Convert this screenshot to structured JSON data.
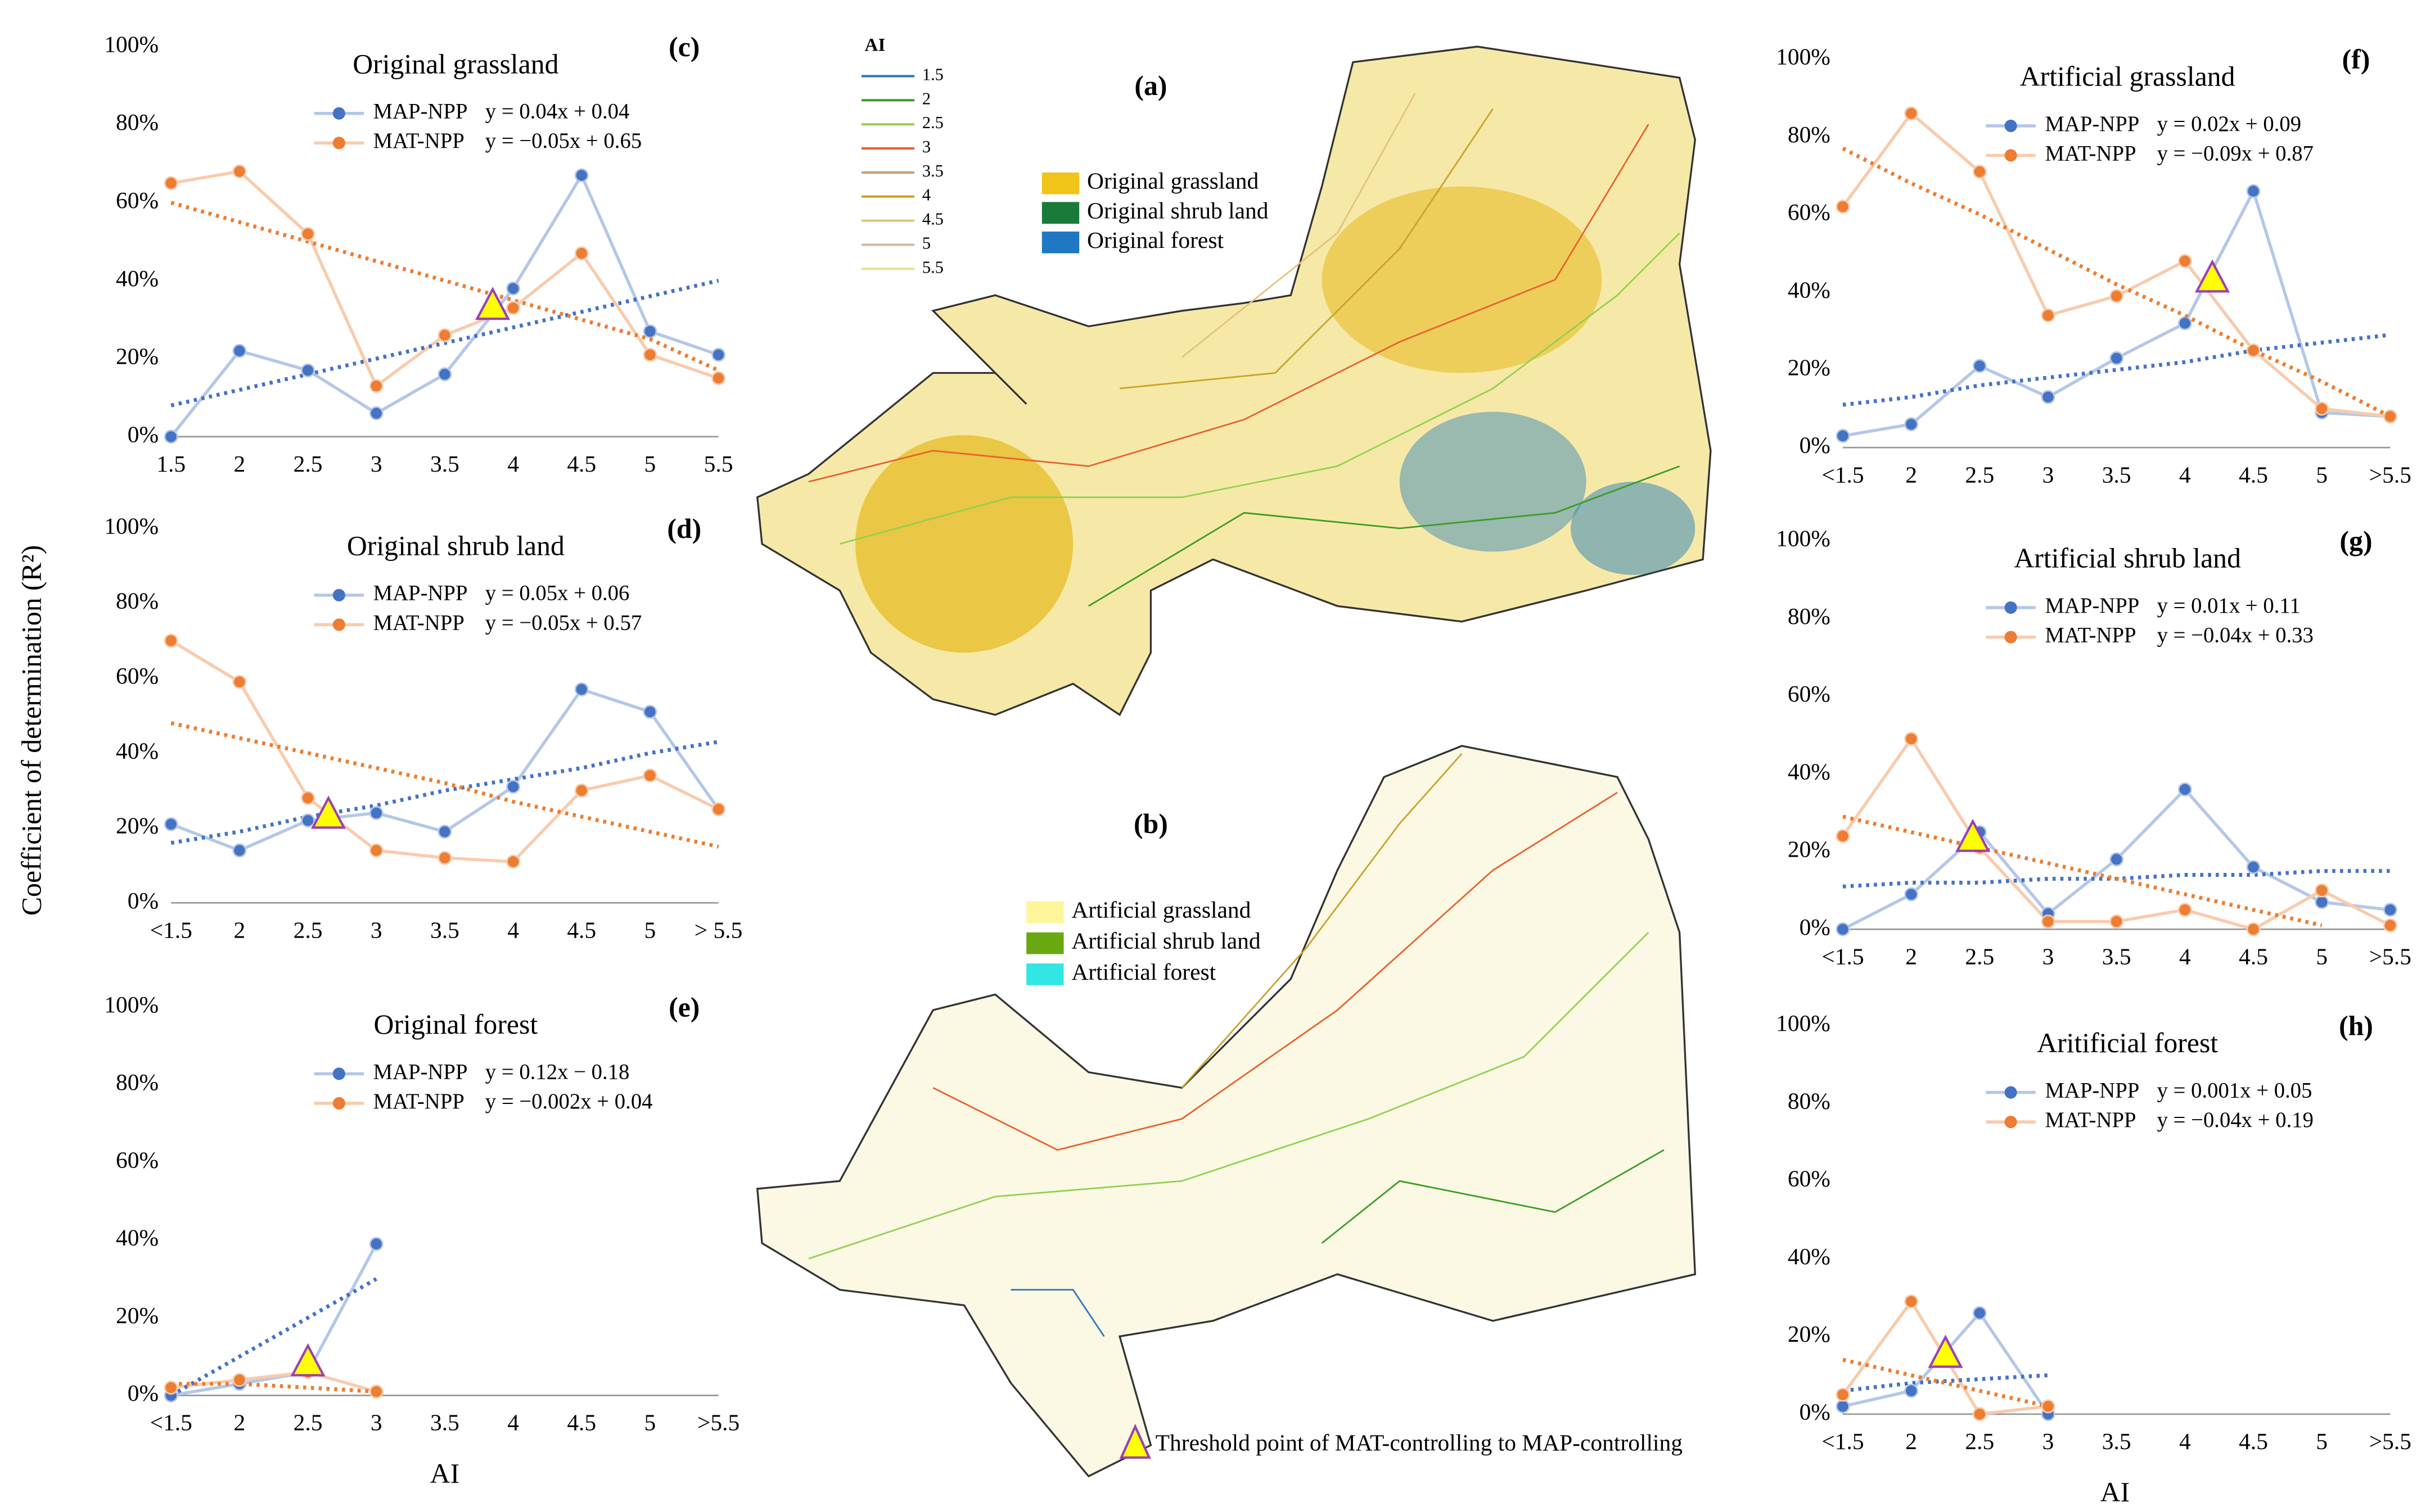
{
  "figure": {
    "y_axis_label": "Coefficient of determination (R²)",
    "x_axis_label": "AI",
    "note": "Threshold point of MAT-controlling to MAP-controlling"
  },
  "maps": {
    "a": {
      "panel": "(a)",
      "ai_title": "AI",
      "ai_levels": [
        {
          "label": "1.5",
          "color": "#2e75b6"
        },
        {
          "label": "2",
          "color": "#3a9d23"
        },
        {
          "label": "2.5",
          "color": "#92d050"
        },
        {
          "label": "3",
          "color": "#e8602c"
        },
        {
          "label": "3.5",
          "color": "#c8a07a"
        },
        {
          "label": "4",
          "color": "#c9a227"
        },
        {
          "label": "4.5",
          "color": "#e3c27a"
        },
        {
          "label": "5",
          "color": "#d4b896"
        },
        {
          "label": "5.5",
          "color": "#e9dc9a"
        }
      ],
      "legend": [
        {
          "name": "Original grassland",
          "color": "#f0c419"
        },
        {
          "name": "Original shrub land",
          "color": "#1a7a3a"
        },
        {
          "name": "Original forest",
          "color": "#1f78c1"
        }
      ]
    },
    "b": {
      "panel": "(b)",
      "legend": [
        {
          "name": "Artificial grassland",
          "color": "#fff59a"
        },
        {
          "name": "Artificial shrub land",
          "color": "#6aa812"
        },
        {
          "name": "Artificial forest",
          "color": "#33e6e6"
        }
      ]
    }
  },
  "chart_data": [
    {
      "type": "line",
      "panel": "(c)",
      "title": "Original grassland",
      "categories": [
        "1.5",
        "2",
        "2.5",
        "3",
        "3.5",
        "4",
        "4.5",
        "5",
        "5.5"
      ],
      "xlim": [
        1.5,
        5.5
      ],
      "ylim": [
        0,
        100
      ],
      "yticks": [
        {
          "value": 0,
          "label": "0%"
        },
        {
          "value": 20,
          "label": "20%"
        },
        {
          "value": 40,
          "label": "40%"
        },
        {
          "value": 60,
          "label": "60%"
        },
        {
          "value": 80,
          "label": "80%"
        },
        {
          "value": 100,
          "label": "100%"
        }
      ],
      "series": [
        {
          "name": "MAP-NPP",
          "equation": "y = 0.04x + 0.04",
          "color": "#4472c4",
          "line_color": "#b4c7e7",
          "values": [
            0,
            22,
            17,
            6,
            16,
            38,
            67,
            27,
            21
          ],
          "trend": [
            8,
            12,
            16,
            20,
            24,
            28,
            32,
            36,
            40
          ]
        },
        {
          "name": "MAT-NPP",
          "equation": "y = −0.05x + 0.65",
          "color": "#ed7d31",
          "line_color": "#f8cbad",
          "values": [
            65,
            68,
            52,
            13,
            26,
            33,
            47,
            21,
            15
          ],
          "trend": [
            60,
            55,
            50,
            45,
            40,
            35,
            30,
            25,
            17
          ]
        }
      ],
      "threshold": {
        "x": 3.85,
        "y": 33
      }
    },
    {
      "type": "line",
      "panel": "(d)",
      "title": "Original shrub land",
      "categories": [
        "<1.5",
        "2",
        "2.5",
        "3",
        "3.5",
        "4",
        "4.5",
        "5",
        "> 5.5"
      ],
      "xlim": [
        1.5,
        5.5
      ],
      "ylim": [
        0,
        100
      ],
      "yticks": [
        {
          "value": 0,
          "label": "0%"
        },
        {
          "value": 20,
          "label": "20%"
        },
        {
          "value": 40,
          "label": "40%"
        },
        {
          "value": 60,
          "label": "60%"
        },
        {
          "value": 80,
          "label": "80%"
        },
        {
          "value": 100,
          "label": "100%"
        }
      ],
      "series": [
        {
          "name": "MAP-NPP",
          "equation": "y = 0.05x + 0.06",
          "color": "#4472c4",
          "line_color": "#b4c7e7",
          "values": [
            21,
            14,
            22,
            24,
            19,
            31,
            57,
            51,
            25
          ],
          "trend": [
            16,
            19,
            23,
            26,
            30,
            33,
            36,
            40,
            43
          ]
        },
        {
          "name": "MAT-NPP",
          "equation": "y = −0.05x + 0.57",
          "color": "#ed7d31",
          "line_color": "#f8cbad",
          "values": [
            70,
            59,
            28,
            14,
            12,
            11,
            30,
            34,
            25
          ],
          "trend": [
            48,
            44,
            40,
            36,
            32,
            27,
            23,
            19,
            15
          ]
        }
      ],
      "threshold": {
        "x": 2.65,
        "y": 23
      }
    },
    {
      "type": "line",
      "panel": "(e)",
      "title": "Original forest",
      "categories": [
        "<1.5",
        "2",
        "2.5",
        "3",
        "3.5",
        "4",
        "4.5",
        "5",
        ">5.5"
      ],
      "xlim": [
        1.5,
        5.5
      ],
      "ylim": [
        0,
        100
      ],
      "yticks": [
        {
          "value": 0,
          "label": "0%"
        },
        {
          "value": 20,
          "label": "20%"
        },
        {
          "value": 40,
          "label": "40%"
        },
        {
          "value": 60,
          "label": "60%"
        },
        {
          "value": 80,
          "label": "80%"
        },
        {
          "value": 100,
          "label": "100%"
        }
      ],
      "series": [
        {
          "name": "MAP-NPP",
          "equation": "y = 0.12x − 0.18",
          "color": "#4472c4",
          "line_color": "#b4c7e7",
          "values": [
            0,
            3,
            6,
            39,
            null,
            null,
            null,
            null,
            null
          ],
          "trend": [
            0,
            10,
            20,
            30,
            null,
            null,
            null,
            null,
            null
          ]
        },
        {
          "name": "MAT-NPP",
          "equation": "y = −0.002x + 0.04",
          "color": "#ed7d31",
          "line_color": "#f8cbad",
          "values": [
            2,
            4,
            6,
            1,
            null,
            null,
            null,
            null,
            null
          ],
          "trend": [
            3,
            3,
            2,
            1,
            null,
            null,
            null,
            null,
            null
          ]
        }
      ],
      "threshold": {
        "x": 2.5,
        "y": 8
      }
    },
    {
      "type": "line",
      "panel": "(f)",
      "title": "Artificial grassland",
      "categories": [
        "<1.5",
        "2",
        "2.5",
        "3",
        "3.5",
        "4",
        "4.5",
        "5",
        ">5.5"
      ],
      "xlim": [
        1.5,
        5.5
      ],
      "ylim": [
        0,
        100
      ],
      "yticks": [
        {
          "value": 0,
          "label": "0%"
        },
        {
          "value": 20,
          "label": "20%"
        },
        {
          "value": 40,
          "label": "40%"
        },
        {
          "value": 60,
          "label": "60%"
        },
        {
          "value": 80,
          "label": "80%"
        },
        {
          "value": 100,
          "label": "100%"
        }
      ],
      "series": [
        {
          "name": "MAP-NPP",
          "equation": "y = 0.02x + 0.09",
          "color": "#4472c4",
          "line_color": "#b4c7e7",
          "values": [
            3,
            6,
            21,
            13,
            23,
            32,
            66,
            9,
            8
          ],
          "trend": [
            11,
            13,
            16,
            18,
            20,
            22,
            25,
            27,
            29
          ]
        },
        {
          "name": "MAT-NPP",
          "equation": "y = −0.09x + 0.87",
          "color": "#ed7d31",
          "line_color": "#f8cbad",
          "values": [
            62,
            86,
            71,
            34,
            39,
            48,
            25,
            10,
            8
          ],
          "trend": [
            77,
            68,
            60,
            51,
            42,
            34,
            25,
            17,
            8
          ]
        }
      ],
      "threshold": {
        "x": 4.2,
        "y": 43
      }
    },
    {
      "type": "line",
      "panel": "(g)",
      "title": "Artificial shrub land",
      "categories": [
        "<1.5",
        "2",
        "2.5",
        "3",
        "3.5",
        "4",
        "4.5",
        "5",
        ">5.5"
      ],
      "xlim": [
        1.5,
        5.5
      ],
      "ylim": [
        0,
        100
      ],
      "yticks": [
        {
          "value": 0,
          "label": "0%"
        },
        {
          "value": 20,
          "label": "20%"
        },
        {
          "value": 40,
          "label": "40%"
        },
        {
          "value": 60,
          "label": "60%"
        },
        {
          "value": 80,
          "label": "80%"
        },
        {
          "value": 100,
          "label": "100%"
        }
      ],
      "series": [
        {
          "name": "MAP-NPP",
          "equation": "y = 0.01x + 0.11",
          "color": "#4472c4",
          "line_color": "#b4c7e7",
          "values": [
            0,
            9,
            25,
            4,
            18,
            36,
            16,
            7,
            5
          ],
          "trend": [
            11,
            12,
            12,
            13,
            13,
            14,
            14,
            15,
            15
          ]
        },
        {
          "name": "MAT-NPP",
          "equation": "y = −0.04x + 0.33",
          "color": "#ed7d31",
          "line_color": "#f8cbad",
          "values": [
            24,
            49,
            21,
            2,
            2,
            5,
            0,
            10,
            1
          ],
          "trend": [
            29,
            25,
            21,
            17,
            13,
            9,
            5,
            1,
            null
          ]
        }
      ],
      "threshold": {
        "x": 2.45,
        "y": 23
      }
    },
    {
      "type": "line",
      "panel": "(h)",
      "title": "Aritificial forest",
      "categories": [
        "<1.5",
        "2",
        "2.5",
        "3",
        "3.5",
        "4",
        "4.5",
        "5",
        ">5.5"
      ],
      "xlim": [
        1.5,
        5.5
      ],
      "ylim": [
        0,
        100
      ],
      "yticks": [
        {
          "value": 0,
          "label": "0%"
        },
        {
          "value": 20,
          "label": "20%"
        },
        {
          "value": 40,
          "label": "40%"
        },
        {
          "value": 60,
          "label": "60%"
        },
        {
          "value": 80,
          "label": "80%"
        },
        {
          "value": 100,
          "label": "100%"
        }
      ],
      "series": [
        {
          "name": "MAP-NPP",
          "equation": "y = 0.001x + 0.05",
          "color": "#4472c4",
          "line_color": "#b4c7e7",
          "values": [
            2,
            6,
            26,
            0,
            null,
            null,
            null,
            null,
            null
          ],
          "trend": [
            6,
            8,
            9,
            10,
            null,
            null,
            null,
            null,
            null
          ]
        },
        {
          "name": "MAT-NPP",
          "equation": "y = −0.04x + 0.19",
          "color": "#ed7d31",
          "line_color": "#f8cbad",
          "values": [
            5,
            29,
            0,
            2,
            null,
            null,
            null,
            null,
            null
          ],
          "trend": [
            14,
            10,
            6,
            2,
            null,
            null,
            null,
            null,
            null
          ]
        }
      ],
      "threshold": {
        "x": 2.25,
        "y": 15
      }
    }
  ]
}
